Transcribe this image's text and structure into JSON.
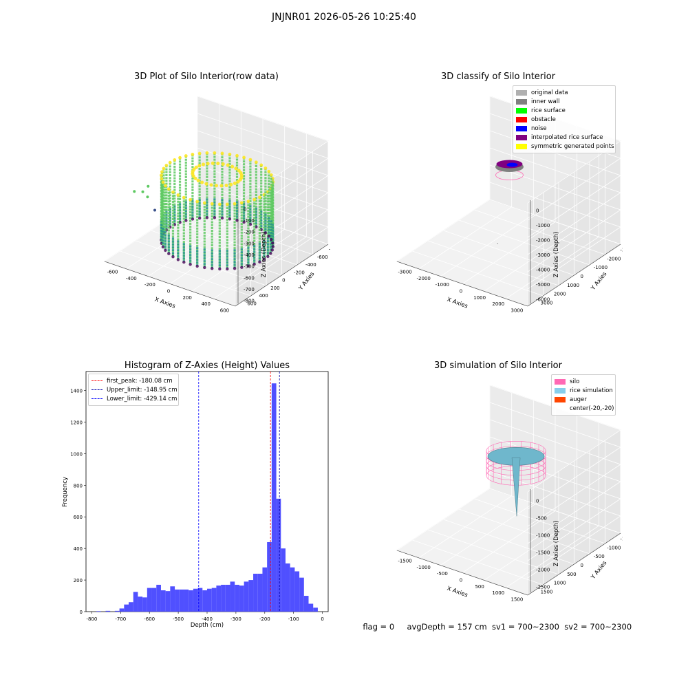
{
  "suptitle": "JNJNR01 2026-05-26 10:25:40",
  "panels": {
    "raw": {
      "title": "3D Plot of Silo Interior(row data)",
      "xlabel": "X Axies",
      "ylabel": "Y Axies",
      "zlabel": "Z Axies (Depth)",
      "xticks": [
        "-600",
        "-400",
        "-200",
        "0",
        "200",
        "400",
        "600"
      ],
      "yticks": [
        "600",
        "400",
        "200",
        "0",
        "-200",
        "-400",
        "-600",
        "-800"
      ],
      "zticks": [
        "0",
        "-100",
        "-200",
        "-300",
        "-400",
        "-500",
        "-600",
        "-700",
        "-800"
      ],
      "colormap": [
        "#fde725",
        "#5ec962",
        "#21918c",
        "#3b528b",
        "#440154"
      ]
    },
    "classify": {
      "title": "3D classify of Silo Interior",
      "xlabel": "X Axies",
      "ylabel": "Y Axies",
      "zlabel": "Z Axies (Depth)",
      "xticks": [
        "-3000",
        "-2000",
        "-1000",
        "0",
        "1000",
        "2000",
        "3000"
      ],
      "yticks": [
        "3000",
        "2000",
        "1000",
        "0",
        "-1000",
        "-2000",
        "-3000"
      ],
      "zticks": [
        "0",
        "-1000",
        "-2000",
        "-3000",
        "-4000",
        "-5000",
        "-6000"
      ],
      "legend": [
        {
          "label": "original data",
          "color": "#b0b0b0"
        },
        {
          "label": "inner wall",
          "color": "#808080"
        },
        {
          "label": "rice surface",
          "color": "#00ff00"
        },
        {
          "label": "obstacle",
          "color": "#ff0000"
        },
        {
          "label": "noise",
          "color": "#0000ff"
        },
        {
          "label": "interpolated rice surface",
          "color": "#800080"
        },
        {
          "label": "symmetric generated points",
          "color": "#ffff00"
        }
      ]
    },
    "simulation": {
      "title": "3D simulation of Silo Interior",
      "xlabel": "X Axies",
      "ylabel": "Y Axies",
      "zlabel": "Z Axies (Depth)",
      "xticks": [
        "-1500",
        "-1000",
        "-500",
        "0",
        "500",
        "1000",
        "1500"
      ],
      "yticks": [
        "1500",
        "1000",
        "500",
        "0",
        "-500",
        "-1000",
        "-1500"
      ],
      "zticks": [
        "0",
        "-500",
        "-1000",
        "-1500",
        "-2000",
        "-2500"
      ],
      "legend": [
        {
          "label": "silo",
          "color": "#ff69b4"
        },
        {
          "label": "rice simulation",
          "color": "#87ceeb"
        },
        {
          "label": "auger",
          "color": "#ff4500"
        },
        {
          "label": "center(-20,-20)",
          "color": "none"
        }
      ]
    }
  },
  "status": {
    "flag": "flag = 0",
    "avg_depth": "avgDepth = 157 cm",
    "sv1": "sv1 = 700~2300",
    "sv2": "sv2 = 700~2300"
  },
  "chart_data": [
    {
      "type": "histogram",
      "title": "Histogram of Z-Axies (Height) Values",
      "xlabel": "Depth (cm)",
      "ylabel": "Frequency",
      "xlim": [
        -820,
        20
      ],
      "ylim": [
        0,
        1520
      ],
      "xticks": [
        -800,
        -700,
        -600,
        -500,
        -400,
        -300,
        -200,
        -100,
        0
      ],
      "yticks": [
        0,
        200,
        400,
        600,
        800,
        1000,
        1200,
        1400
      ],
      "bar_color": "#5050ff",
      "bin_start": -800,
      "bin_width": 16,
      "values": [
        0,
        3,
        0,
        5,
        0,
        5,
        20,
        45,
        60,
        125,
        95,
        90,
        150,
        150,
        170,
        135,
        130,
        160,
        140,
        140,
        140,
        135,
        145,
        150,
        135,
        145,
        150,
        165,
        170,
        170,
        190,
        170,
        165,
        190,
        200,
        240,
        240,
        280,
        440,
        1445,
        715,
        400,
        305,
        280,
        255,
        215,
        100,
        50,
        25
      ],
      "lines": [
        {
          "label": "first_peak: -180.08 cm",
          "x": -180.08,
          "color": "#ff0000"
        },
        {
          "label": "Upper_limit: -148.95 cm",
          "x": -148.95,
          "color": "#0000aa"
        },
        {
          "label": "Lower_limit: -429.14 cm",
          "x": -429.14,
          "color": "#0000ff"
        }
      ]
    }
  ]
}
